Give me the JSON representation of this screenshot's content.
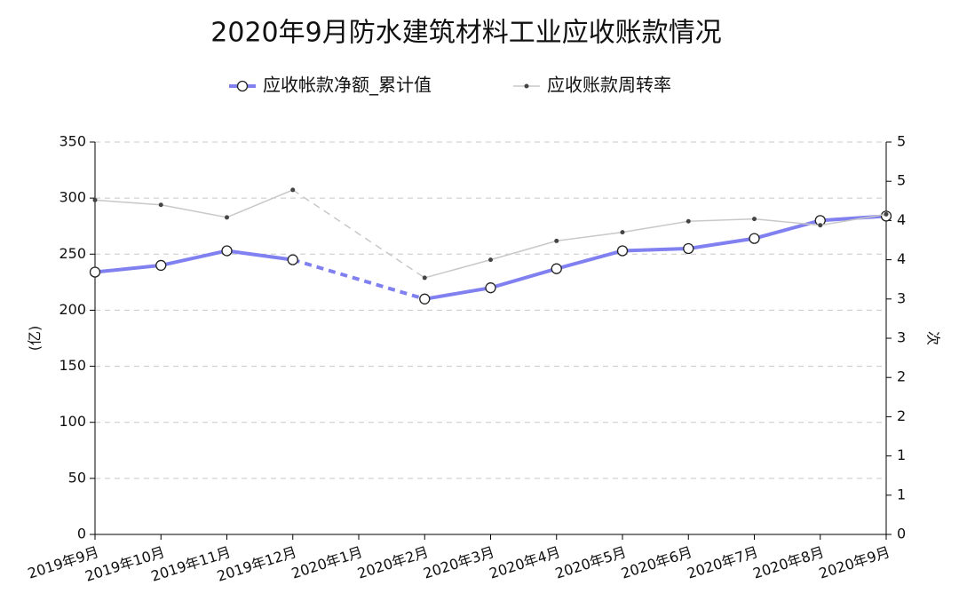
{
  "chart_data": {
    "type": "line",
    "title": "2020年9月防水建筑材料工业应收账款情况",
    "y_label": "(亿)",
    "y2_label": "次",
    "categories": [
      "2019年9月",
      "2019年10月",
      "2019年11月",
      "2019年12月",
      "2020年1月",
      "2020年2月",
      "2020年3月",
      "2020年4月",
      "2020年5月",
      "2020年6月",
      "2020年7月",
      "2020年8月",
      "2020年9月"
    ],
    "series": [
      {
        "name": "应收帐款净额_累计值",
        "color": "#8080f0",
        "values": [
          234,
          240,
          253,
          245,
          null,
          210,
          220,
          237,
          253,
          255,
          264,
          280,
          284
        ]
      },
      {
        "name": "应收账款周转率",
        "color": "#c8c8c8",
        "axis": "y2",
        "values": [
          4.26,
          4.2,
          4.04,
          4.39,
          null,
          3.27,
          3.5,
          3.74,
          3.85,
          3.99,
          4.02,
          3.94,
          4.08
        ]
      }
    ],
    "ylim": [
      0,
      350
    ],
    "yticks": [
      0,
      50,
      100,
      150,
      200,
      250,
      300,
      350
    ],
    "y2lim": [
      0,
      5
    ],
    "y2ticks": [
      0,
      {
        "value": 0.5,
        "label": "1"
      },
      1,
      {
        "value": 1.5,
        "label": "2"
      },
      2,
      {
        "value": 2.5,
        "label": "3"
      },
      3,
      {
        "value": 3.5,
        "label": "4"
      },
      4,
      {
        "value": 4.5,
        "label": "5"
      },
      5
    ],
    "grid": true
  }
}
